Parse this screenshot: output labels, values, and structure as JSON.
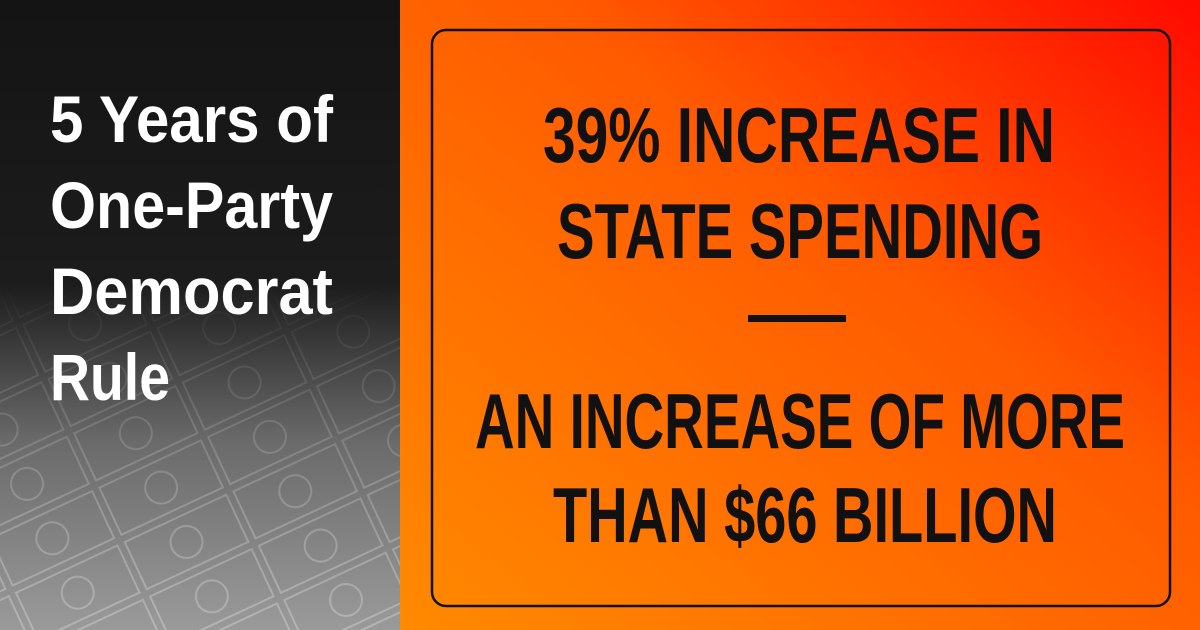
{
  "left_panel": {
    "title_lines": [
      "5 Years of",
      "One-Party",
      "Democrat",
      "Rule"
    ]
  },
  "box": {
    "headline_lines": [
      "39% INCREASE IN",
      "STATE SPENDING"
    ],
    "detail_lines": [
      "AN INCREASE OF MORE",
      "THAN $66 BILLION"
    ]
  }
}
